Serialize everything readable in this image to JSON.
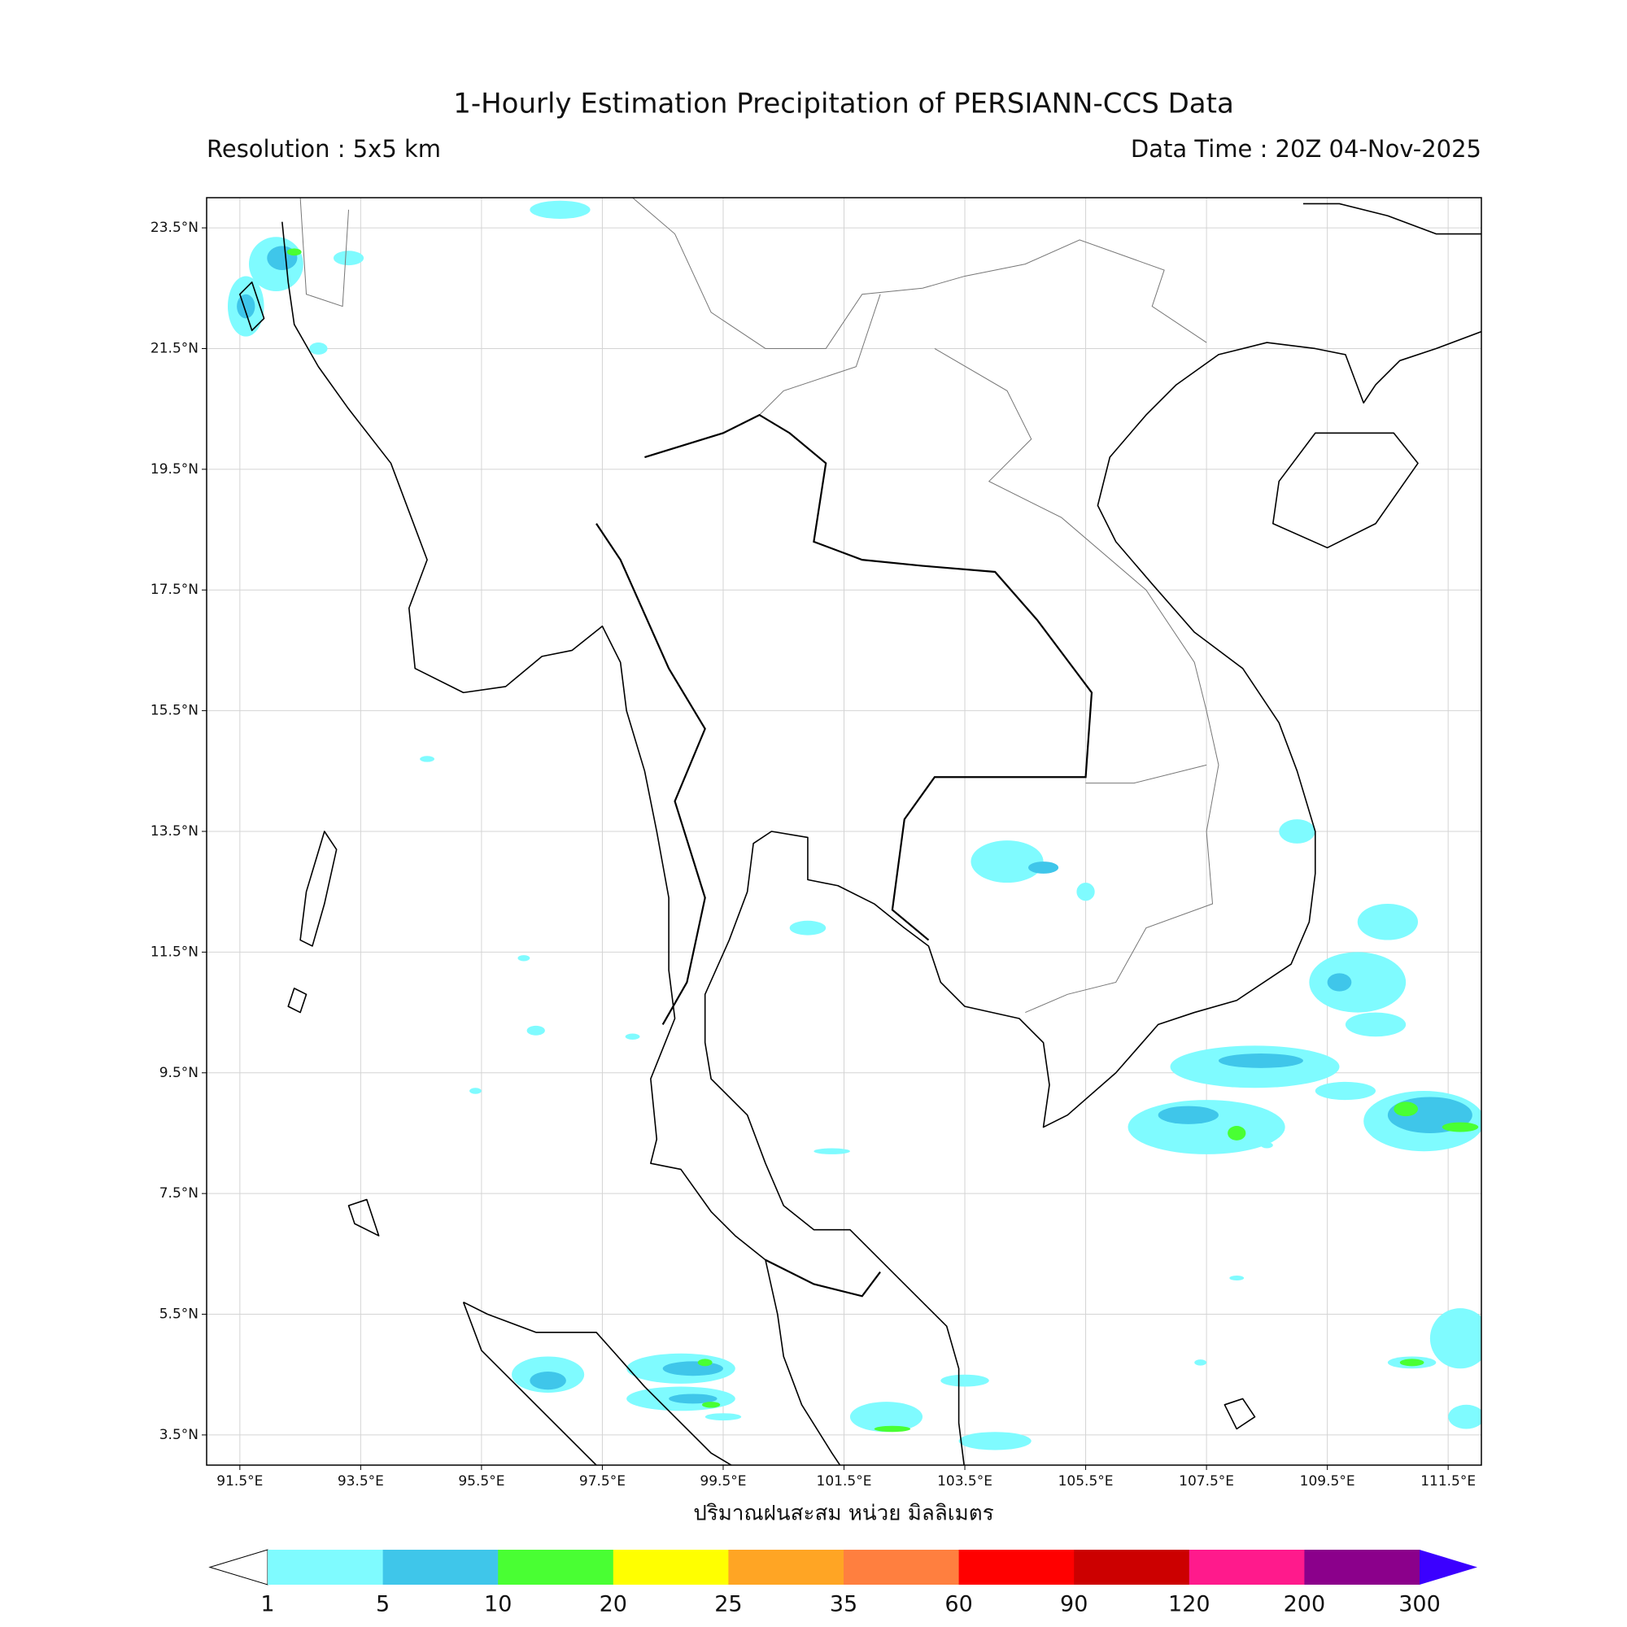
{
  "header": {
    "title": "1-Hourly Estimation Precipitation of PERSIANN-CCS Data",
    "resolution": "Resolution : 5x5 km",
    "data_time": "Data Time : 20Z 04-Nov-2025"
  },
  "map": {
    "xlim": [
      90.95,
      112.05
    ],
    "ylim": [
      3.0,
      24.0
    ],
    "grid": true,
    "xticks": [
      {
        "value": 91.5,
        "label": "91.5°E"
      },
      {
        "value": 93.5,
        "label": "93.5°E"
      },
      {
        "value": 95.5,
        "label": "95.5°E"
      },
      {
        "value": 97.5,
        "label": "97.5°E"
      },
      {
        "value": 99.5,
        "label": "99.5°E"
      },
      {
        "value": 101.5,
        "label": "101.5°E"
      },
      {
        "value": 103.5,
        "label": "103.5°E"
      },
      {
        "value": 105.5,
        "label": "105.5°E"
      },
      {
        "value": 107.5,
        "label": "107.5°E"
      },
      {
        "value": 109.5,
        "label": "109.5°E"
      },
      {
        "value": 111.5,
        "label": "111.5°E"
      }
    ],
    "yticks": [
      {
        "value": 23.5,
        "label": "23.5°N"
      },
      {
        "value": 21.5,
        "label": "21.5°N"
      },
      {
        "value": 19.5,
        "label": "19.5°N"
      },
      {
        "value": 17.5,
        "label": "17.5°N"
      },
      {
        "value": 15.5,
        "label": "15.5°N"
      },
      {
        "value": 13.5,
        "label": "13.5°N"
      },
      {
        "value": 11.5,
        "label": "11.5°N"
      },
      {
        "value": 9.5,
        "label": "9.5°N"
      },
      {
        "value": 7.5,
        "label": "7.5°N"
      },
      {
        "value": 5.5,
        "label": "5.5°N"
      },
      {
        "value": 3.5,
        "label": "3.5°N"
      }
    ]
  },
  "colorbar": {
    "label": "ปริมาณฝนสะสม หน่วย มิลลิเมตร",
    "levels": [
      1,
      5,
      10,
      20,
      25,
      35,
      60,
      90,
      120,
      200,
      300
    ],
    "colors": [
      "#7ffbff",
      "#3fc6ea",
      "#49ff33",
      "#ffff00",
      "#ffa524",
      "#ff7f3f",
      "#ff0000",
      "#cc0000",
      "#ff1a8c",
      "#8b008b"
    ],
    "under_color": "#ffffff",
    "over_color": "#3b00ff"
  }
}
